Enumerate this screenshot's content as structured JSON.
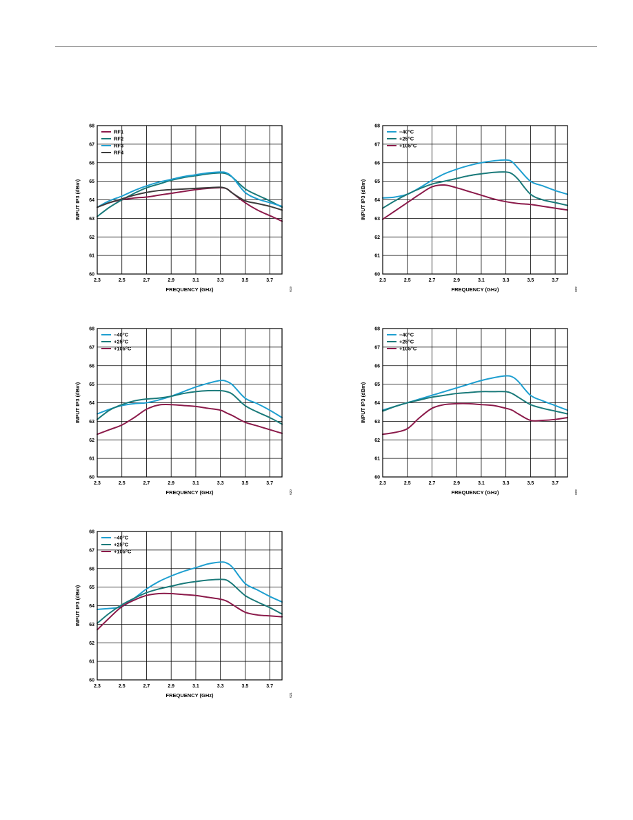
{
  "page": {
    "background": "#ffffff",
    "rule_color": "#9a9a9a"
  },
  "chart_data": [
    {
      "type": "line",
      "xlabel": "FREQUENCY (GHz)",
      "ylabel": "INPUT IP3 (dBm)",
      "xlim": [
        2.3,
        3.8
      ],
      "ylim": [
        60,
        68
      ],
      "xticks": [
        2.3,
        2.5,
        2.7,
        2.9,
        3.1,
        3.3,
        3.5,
        3.7
      ],
      "xtick_labels": [
        "2.3",
        "2.5",
        "2.7",
        "2.9",
        "3.1",
        "3.3",
        "3.5",
        "3.7"
      ],
      "yticks": [
        60,
        61,
        62,
        63,
        64,
        65,
        66,
        67,
        68
      ],
      "ytick_labels": [
        "60",
        "61",
        "62",
        "63",
        "64",
        "65",
        "66",
        "67",
        "68"
      ],
      "grid": true,
      "legend_position": "top-left",
      "code": "019",
      "series": [
        {
          "name": "RF1",
          "color": "#8b1a4a",
          "x": [
            2.3,
            2.4,
            2.5,
            2.6,
            2.7,
            2.8,
            2.9,
            3.0,
            3.1,
            3.2,
            3.3,
            3.35,
            3.4,
            3.5,
            3.6,
            3.7,
            3.8
          ],
          "y": [
            63.6,
            63.85,
            64.0,
            64.1,
            64.15,
            64.25,
            64.35,
            64.45,
            64.55,
            64.62,
            64.65,
            64.6,
            64.35,
            63.85,
            63.45,
            63.15,
            62.85
          ]
        },
        {
          "name": "RF2",
          "color": "#1a7a7a",
          "x": [
            2.3,
            2.4,
            2.5,
            2.6,
            2.7,
            2.8,
            2.9,
            3.0,
            3.1,
            3.2,
            3.3,
            3.35,
            3.4,
            3.5,
            3.6,
            3.7,
            3.8
          ],
          "y": [
            63.1,
            63.6,
            64.0,
            64.35,
            64.65,
            64.85,
            65.05,
            65.2,
            65.3,
            65.4,
            65.45,
            65.4,
            65.2,
            64.6,
            64.25,
            63.95,
            63.6
          ]
        },
        {
          "name": "RF3",
          "color": "#1e9fd0",
          "x": [
            2.3,
            2.4,
            2.5,
            2.6,
            2.7,
            2.8,
            2.9,
            3.0,
            3.1,
            3.2,
            3.3,
            3.35,
            3.4,
            3.5,
            3.6,
            3.7,
            3.8
          ],
          "y": [
            63.6,
            63.95,
            64.2,
            64.5,
            64.75,
            64.95,
            65.1,
            65.25,
            65.35,
            65.45,
            65.5,
            65.45,
            65.2,
            64.4,
            64.05,
            63.85,
            63.65
          ]
        },
        {
          "name": "RF4",
          "color": "#3c3c3c",
          "x": [
            2.3,
            2.4,
            2.5,
            2.6,
            2.7,
            2.8,
            2.9,
            3.0,
            3.1,
            3.2,
            3.3,
            3.35,
            3.4,
            3.5,
            3.6,
            3.7,
            3.8
          ],
          "y": [
            63.6,
            63.85,
            64.05,
            64.25,
            64.4,
            64.5,
            64.55,
            64.58,
            64.62,
            64.65,
            64.68,
            64.6,
            64.35,
            63.95,
            63.8,
            63.65,
            63.45
          ]
        }
      ]
    },
    {
      "type": "line",
      "xlabel": "FREQUENCY (GHz)",
      "ylabel": "INPUT IP3 (dBm)",
      "xlim": [
        2.3,
        3.8
      ],
      "ylim": [
        60,
        68
      ],
      "xticks": [
        2.3,
        2.5,
        2.7,
        2.9,
        3.1,
        3.3,
        3.5,
        3.7
      ],
      "xtick_labels": [
        "2.3",
        "2.5",
        "2.7",
        "2.9",
        "3.1",
        "3.3",
        "3.5",
        "3.7"
      ],
      "yticks": [
        60,
        61,
        62,
        63,
        64,
        65,
        66,
        67,
        68
      ],
      "ytick_labels": [
        "60",
        "61",
        "62",
        "63",
        "64",
        "65",
        "66",
        "67",
        "68"
      ],
      "grid": true,
      "legend_position": "top-left",
      "code": "022",
      "series": [
        {
          "name": "−40°C",
          "color": "#1e9fd0",
          "x": [
            2.3,
            2.4,
            2.5,
            2.6,
            2.7,
            2.8,
            2.9,
            3.0,
            3.1,
            3.2,
            3.3,
            3.35,
            3.4,
            3.5,
            3.6,
            3.7,
            3.8
          ],
          "y": [
            64.1,
            64.15,
            64.3,
            64.65,
            65.05,
            65.4,
            65.65,
            65.85,
            66.0,
            66.1,
            66.15,
            66.05,
            65.7,
            65.0,
            64.75,
            64.5,
            64.3
          ]
        },
        {
          "name": "+25°C",
          "color": "#1a7a7a",
          "x": [
            2.3,
            2.4,
            2.5,
            2.6,
            2.7,
            2.8,
            2.9,
            3.0,
            3.1,
            3.2,
            3.3,
            3.35,
            3.4,
            3.5,
            3.6,
            3.7,
            3.8
          ],
          "y": [
            63.55,
            63.95,
            64.3,
            64.6,
            64.85,
            65.0,
            65.15,
            65.3,
            65.4,
            65.48,
            65.5,
            65.4,
            65.1,
            64.3,
            64.0,
            63.85,
            63.7
          ]
        },
        {
          "name": "+105°C",
          "color": "#8b1a4a",
          "x": [
            2.3,
            2.4,
            2.5,
            2.6,
            2.7,
            2.8,
            2.9,
            3.0,
            3.1,
            3.2,
            3.3,
            3.4,
            3.5,
            3.6,
            3.7,
            3.8
          ],
          "y": [
            62.95,
            63.4,
            63.85,
            64.3,
            64.7,
            64.8,
            64.65,
            64.45,
            64.25,
            64.05,
            63.9,
            63.8,
            63.75,
            63.65,
            63.55,
            63.45
          ]
        }
      ]
    },
    {
      "type": "line",
      "xlabel": "FREQUENCY (GHz)",
      "ylabel": "INPUT IP3 (dBm)",
      "xlim": [
        2.3,
        3.8
      ],
      "ylim": [
        60,
        68
      ],
      "xticks": [
        2.3,
        2.5,
        2.7,
        2.9,
        3.1,
        3.3,
        3.5,
        3.7
      ],
      "xtick_labels": [
        "2.3",
        "2.5",
        "2.7",
        "2.9",
        "3.1",
        "3.3",
        "3.5",
        "3.7"
      ],
      "yticks": [
        60,
        61,
        62,
        63,
        64,
        65,
        66,
        67,
        68
      ],
      "ytick_labels": [
        "60",
        "61",
        "62",
        "63",
        "64",
        "65",
        "66",
        "67",
        "68"
      ],
      "grid": true,
      "legend_position": "top-left",
      "code": "020",
      "series": [
        {
          "name": "−40°C",
          "color": "#1e9fd0",
          "x": [
            2.3,
            2.4,
            2.5,
            2.6,
            2.7,
            2.8,
            2.9,
            3.0,
            3.1,
            3.2,
            3.3,
            3.35,
            3.4,
            3.5,
            3.6,
            3.7,
            3.8
          ],
          "y": [
            63.4,
            63.65,
            63.85,
            63.95,
            64.0,
            64.15,
            64.35,
            64.6,
            64.85,
            65.05,
            65.2,
            65.15,
            64.95,
            64.25,
            63.95,
            63.6,
            63.2
          ]
        },
        {
          "name": "+25°C",
          "color": "#1a7a7a",
          "x": [
            2.3,
            2.4,
            2.5,
            2.6,
            2.7,
            2.8,
            2.9,
            3.0,
            3.1,
            3.2,
            3.3,
            3.35,
            3.4,
            3.5,
            3.6,
            3.7,
            3.8
          ],
          "y": [
            63.1,
            63.6,
            63.9,
            64.1,
            64.2,
            64.25,
            64.35,
            64.5,
            64.6,
            64.65,
            64.65,
            64.6,
            64.45,
            63.85,
            63.5,
            63.2,
            62.85
          ]
        },
        {
          "name": "+105°C",
          "color": "#8b1a4a",
          "x": [
            2.3,
            2.4,
            2.5,
            2.6,
            2.7,
            2.8,
            2.9,
            3.0,
            3.1,
            3.2,
            3.3,
            3.35,
            3.4,
            3.5,
            3.6,
            3.7,
            3.8
          ],
          "y": [
            62.3,
            62.55,
            62.8,
            63.2,
            63.65,
            63.88,
            63.9,
            63.85,
            63.8,
            63.7,
            63.6,
            63.45,
            63.3,
            62.95,
            62.75,
            62.55,
            62.35
          ]
        }
      ]
    },
    {
      "type": "line",
      "xlabel": "FREQUENCY (GHz)",
      "ylabel": "INPUT IP3 (dBm)",
      "xlim": [
        2.3,
        3.8
      ],
      "ylim": [
        60,
        68
      ],
      "xticks": [
        2.3,
        2.5,
        2.7,
        2.9,
        3.1,
        3.3,
        3.5,
        3.7
      ],
      "xtick_labels": [
        "2.3",
        "2.5",
        "2.7",
        "2.9",
        "3.1",
        "3.3",
        "3.5",
        "3.7"
      ],
      "yticks": [
        60,
        61,
        62,
        63,
        64,
        65,
        66,
        67,
        68
      ],
      "ytick_labels": [
        "60",
        "61",
        "62",
        "63",
        "64",
        "65",
        "66",
        "67",
        "68"
      ],
      "grid": true,
      "legend_position": "top-left",
      "code": "023",
      "series": [
        {
          "name": "−40°C",
          "color": "#1e9fd0",
          "x": [
            2.3,
            2.4,
            2.5,
            2.6,
            2.7,
            2.8,
            2.9,
            3.0,
            3.1,
            3.2,
            3.3,
            3.35,
            3.4,
            3.5,
            3.6,
            3.7,
            3.8
          ],
          "y": [
            63.6,
            63.8,
            64.0,
            64.2,
            64.4,
            64.6,
            64.8,
            65.0,
            65.2,
            65.35,
            65.45,
            65.4,
            65.15,
            64.4,
            64.1,
            63.85,
            63.6
          ]
        },
        {
          "name": "+25°C",
          "color": "#1a7a7a",
          "x": [
            2.3,
            2.4,
            2.5,
            2.6,
            2.7,
            2.8,
            2.9,
            3.0,
            3.1,
            3.2,
            3.3,
            3.35,
            3.4,
            3.5,
            3.6,
            3.7,
            3.8
          ],
          "y": [
            63.55,
            63.8,
            64.0,
            64.15,
            64.3,
            64.4,
            64.5,
            64.55,
            64.6,
            64.6,
            64.6,
            64.5,
            64.3,
            63.9,
            63.7,
            63.55,
            63.4
          ]
        },
        {
          "name": "+105°C",
          "color": "#8b1a4a",
          "x": [
            2.3,
            2.4,
            2.5,
            2.6,
            2.7,
            2.8,
            2.9,
            3.0,
            3.1,
            3.2,
            3.3,
            3.35,
            3.4,
            3.5,
            3.6,
            3.7,
            3.8
          ],
          "y": [
            62.3,
            62.4,
            62.6,
            63.2,
            63.7,
            63.9,
            63.95,
            63.95,
            63.9,
            63.85,
            63.7,
            63.6,
            63.4,
            63.05,
            63.05,
            63.1,
            63.2
          ]
        }
      ]
    },
    {
      "type": "line",
      "xlabel": "FREQUENCY (GHz)",
      "ylabel": "INPUT IP3 (dBm)",
      "xlim": [
        2.3,
        3.8
      ],
      "ylim": [
        60,
        68
      ],
      "xticks": [
        2.3,
        2.5,
        2.7,
        2.9,
        3.1,
        3.3,
        3.5,
        3.7
      ],
      "xtick_labels": [
        "2.3",
        "2.5",
        "2.7",
        "2.9",
        "3.1",
        "3.3",
        "3.5",
        "3.7"
      ],
      "yticks": [
        60,
        61,
        62,
        63,
        64,
        65,
        66,
        67,
        68
      ],
      "ytick_labels": [
        "60",
        "61",
        "62",
        "63",
        "64",
        "65",
        "66",
        "67",
        "68"
      ],
      "grid": true,
      "legend_position": "top-left",
      "code": "021",
      "series": [
        {
          "name": "−40°C",
          "color": "#1e9fd0",
          "x": [
            2.3,
            2.4,
            2.5,
            2.6,
            2.7,
            2.8,
            2.9,
            3.0,
            3.1,
            3.2,
            3.3,
            3.35,
            3.4,
            3.5,
            3.6,
            3.7,
            3.8
          ],
          "y": [
            63.8,
            63.85,
            63.95,
            64.4,
            64.9,
            65.3,
            65.6,
            65.85,
            66.05,
            66.25,
            66.35,
            66.3,
            66.05,
            65.2,
            64.85,
            64.5,
            64.2
          ]
        },
        {
          "name": "+25°C",
          "color": "#1a7a7a",
          "x": [
            2.3,
            2.4,
            2.5,
            2.6,
            2.7,
            2.8,
            2.9,
            3.0,
            3.1,
            3.2,
            3.3,
            3.35,
            3.4,
            3.5,
            3.6,
            3.7,
            3.8
          ],
          "y": [
            63.05,
            63.6,
            64.05,
            64.4,
            64.7,
            64.9,
            65.05,
            65.2,
            65.3,
            65.38,
            65.42,
            65.38,
            65.15,
            64.55,
            64.2,
            63.9,
            63.55
          ]
        },
        {
          "name": "+105°C",
          "color": "#8b1a4a",
          "x": [
            2.3,
            2.4,
            2.5,
            2.6,
            2.7,
            2.8,
            2.9,
            3.0,
            3.1,
            3.2,
            3.3,
            3.35,
            3.4,
            3.5,
            3.6,
            3.7,
            3.8
          ],
          "y": [
            62.7,
            63.35,
            63.95,
            64.3,
            64.55,
            64.65,
            64.65,
            64.6,
            64.55,
            64.45,
            64.35,
            64.25,
            64.05,
            63.65,
            63.5,
            63.45,
            63.4
          ]
        }
      ]
    }
  ]
}
